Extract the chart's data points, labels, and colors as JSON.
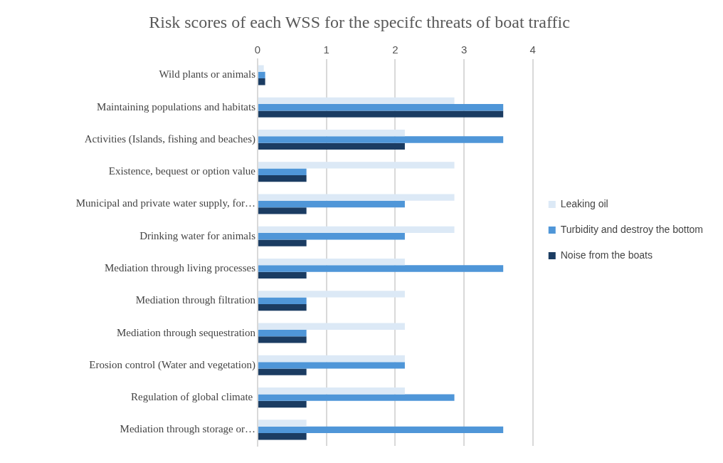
{
  "chart_data": {
    "type": "bar",
    "orientation": "horizontal",
    "title": "Risk scores of each WSS for the specifc threats of boat traffic",
    "categories": [
      "Wild plants or animals",
      "Maintaining populations and habitats",
      "Activities (Islands, fishing and beaches)",
      "Existence, bequest or option value",
      "Municipal and private water supply, for…",
      "Drinking water for animals",
      "Mediation through living processes",
      "Mediation through filtration",
      "Mediation through sequestration",
      "Erosion control (Water and vegetation)",
      "Regulation of global climate ",
      "Mediation through storage or…"
    ],
    "series": [
      {
        "name": "Leaking oil",
        "color": "#dce9f6",
        "values": [
          0.09,
          2.86,
          2.14,
          2.86,
          2.86,
          2.86,
          2.14,
          2.14,
          2.14,
          2.14,
          2.14,
          0.71
        ]
      },
      {
        "name": "Turbidity and destroy the bottom",
        "color": "#4f96d8",
        "values": [
          0.11,
          3.57,
          3.57,
          0.71,
          2.14,
          2.14,
          3.57,
          0.71,
          0.71,
          2.14,
          2.86,
          3.57
        ]
      },
      {
        "name": "Noise from the boats",
        "color": "#1b3c62",
        "values": [
          0.11,
          3.57,
          2.14,
          0.71,
          0.71,
          0.71,
          0.71,
          0.71,
          0.71,
          0.71,
          0.71,
          0.71
        ]
      }
    ],
    "xlim": [
      0,
      4
    ],
    "xticks": [
      0,
      1,
      2,
      3,
      4
    ],
    "grid": "x",
    "legend": "right"
  }
}
